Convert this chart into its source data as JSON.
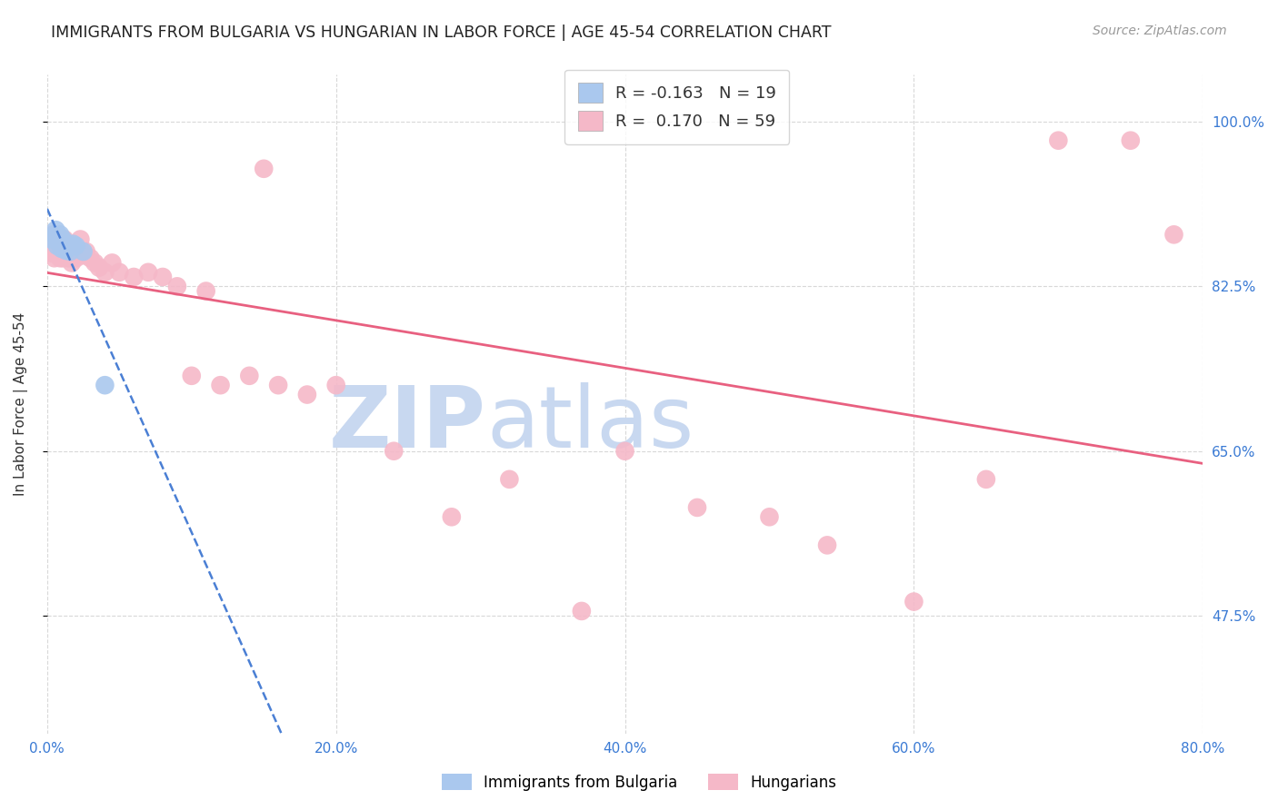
{
  "title": "IMMIGRANTS FROM BULGARIA VS HUNGARIAN IN LABOR FORCE | AGE 45-54 CORRELATION CHART",
  "source": "Source: ZipAtlas.com",
  "ylabel": "In Labor Force | Age 45-54",
  "xlim": [
    0.0,
    0.8
  ],
  "ylim": [
    0.35,
    1.05
  ],
  "xtick_labels": [
    "0.0%",
    "20.0%",
    "40.0%",
    "60.0%",
    "80.0%"
  ],
  "xtick_vals": [
    0.0,
    0.2,
    0.4,
    0.6,
    0.8
  ],
  "ytick_labels": [
    "47.5%",
    "65.0%",
    "82.5%",
    "100.0%"
  ],
  "ytick_vals": [
    0.475,
    0.65,
    0.825,
    1.0
  ],
  "legend_blue_R": "-0.163",
  "legend_blue_N": "19",
  "legend_pink_R": "0.170",
  "legend_pink_N": "59",
  "bulgaria_x": [
    0.003,
    0.005,
    0.006,
    0.007,
    0.007,
    0.008,
    0.009,
    0.009,
    0.01,
    0.01,
    0.011,
    0.012,
    0.013,
    0.014,
    0.016,
    0.018,
    0.02,
    0.025,
    0.04
  ],
  "bulgaria_y": [
    0.875,
    0.88,
    0.885,
    0.875,
    0.868,
    0.878,
    0.87,
    0.88,
    0.872,
    0.865,
    0.875,
    0.868,
    0.863,
    0.87,
    0.862,
    0.87,
    0.868,
    0.862,
    0.72
  ],
  "hungarian_x": [
    0.003,
    0.004,
    0.004,
    0.005,
    0.006,
    0.006,
    0.007,
    0.007,
    0.008,
    0.008,
    0.009,
    0.01,
    0.01,
    0.011,
    0.012,
    0.012,
    0.013,
    0.014,
    0.015,
    0.016,
    0.017,
    0.018,
    0.019,
    0.02,
    0.022,
    0.023,
    0.025,
    0.027,
    0.03,
    0.033,
    0.036,
    0.04,
    0.045,
    0.05,
    0.06,
    0.07,
    0.08,
    0.09,
    0.1,
    0.11,
    0.12,
    0.14,
    0.15,
    0.16,
    0.18,
    0.2,
    0.24,
    0.28,
    0.32,
    0.37,
    0.4,
    0.45,
    0.5,
    0.54,
    0.6,
    0.65,
    0.7,
    0.75,
    0.78
  ],
  "hungarian_y": [
    0.87,
    0.86,
    0.88,
    0.855,
    0.865,
    0.875,
    0.862,
    0.872,
    0.86,
    0.87,
    0.855,
    0.862,
    0.87,
    0.855,
    0.865,
    0.875,
    0.86,
    0.868,
    0.855,
    0.862,
    0.85,
    0.858,
    0.865,
    0.855,
    0.862,
    0.875,
    0.858,
    0.862,
    0.855,
    0.85,
    0.845,
    0.84,
    0.85,
    0.84,
    0.835,
    0.84,
    0.835,
    0.825,
    0.73,
    0.82,
    0.72,
    0.73,
    0.95,
    0.72,
    0.71,
    0.72,
    0.65,
    0.58,
    0.62,
    0.48,
    0.65,
    0.59,
    0.58,
    0.55,
    0.49,
    0.62,
    0.98,
    0.98,
    0.88
  ],
  "blue_color": "#aac8ee",
  "pink_color": "#f5b8c8",
  "blue_line_color": "#4a7fd4",
  "pink_line_color": "#e86080",
  "background_color": "#ffffff",
  "grid_color": "#d8d8d8",
  "watermark_zip": "ZIP",
  "watermark_atlas": "atlas",
  "watermark_color_zip": "#c8d8f0",
  "watermark_color_atlas": "#c8d8f0"
}
